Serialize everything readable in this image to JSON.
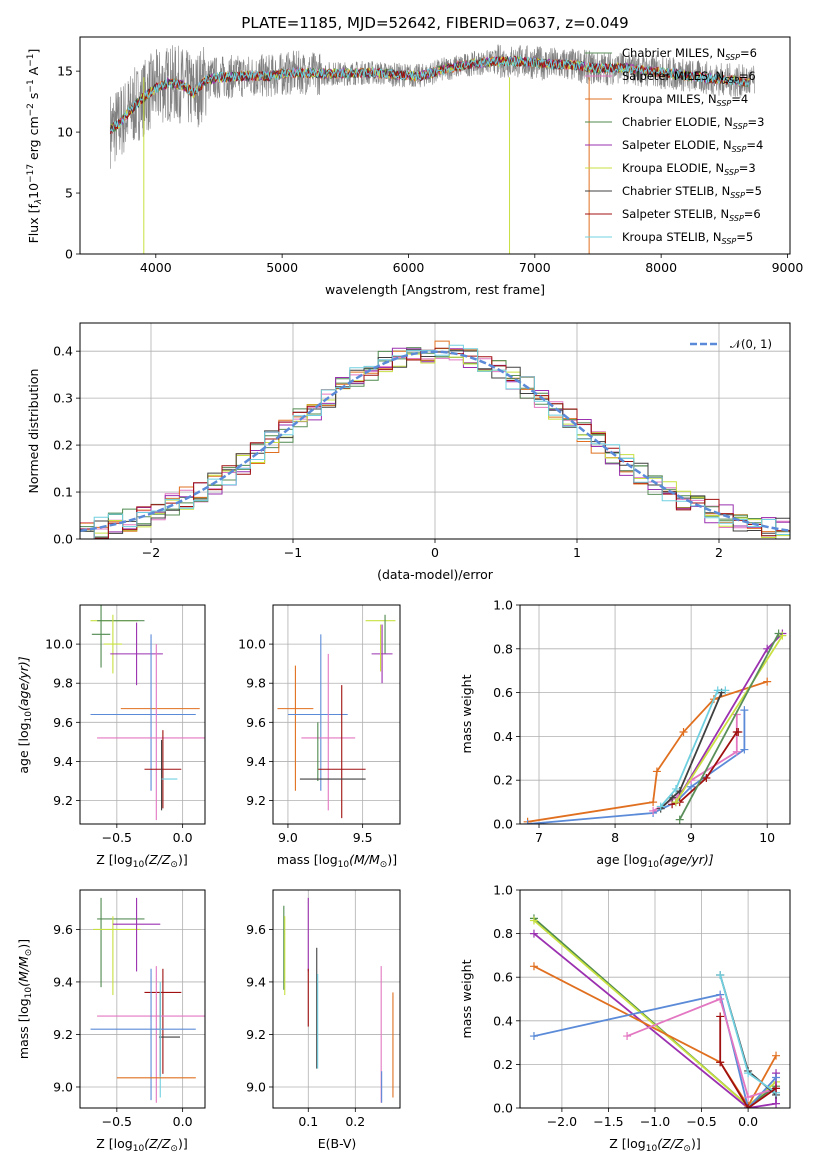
{
  "page_title": "PLATE=1185, MJD=52642, FIBERID=0637, z=0.049",
  "series_colors": [
    "#5a8f5a",
    "#e377c2",
    "#e07020",
    "#4f8a4f",
    "#9b30b0",
    "#c8e040",
    "#404040",
    "#a01010",
    "#70d0e0"
  ],
  "chart_data": [
    {
      "id": "spectrum",
      "type": "line",
      "title": "PLATE=1185, MJD=52642, FIBERID=0637, z=0.049",
      "xlabel": "wavelength [Angstrom, rest frame]",
      "ylabel_main": "Flux [f",
      "ylabel_sub": "λ",
      "ylabel_rest": "10",
      "ylabel_exp": "−17",
      "ylabel_units": " erg cm",
      "ylabel_units_exp": "−2",
      "ylabel_units2": " s",
      "ylabel_units2_exp": "−1",
      "ylabel_units3": " A",
      "ylabel_units3_exp": "−1",
      "ylabel_end": "]",
      "xlim": [
        3400,
        9020
      ],
      "ylim": [
        0,
        17.8
      ],
      "xticks": [
        4000,
        5000,
        6000,
        7000,
        8000,
        9000
      ],
      "yticks": [
        0,
        5,
        10,
        15
      ],
      "data_color": "#808080",
      "model_color": "#70d8e0",
      "legend_position": "right",
      "legend": [
        {
          "name": "Chabrier MILES, N",
          "sub": "SSP",
          "val": "=6",
          "color": "#5a8f5a"
        },
        {
          "name": "Salpeter MILES, N",
          "sub": "SSP",
          "val": "=6",
          "color": "#e377c2"
        },
        {
          "name": "Kroupa MILES, N",
          "sub": "SSP",
          "val": "=4",
          "color": "#e07020"
        },
        {
          "name": "Chabrier ELODIE, N",
          "sub": "SSP",
          "val": "=3",
          "color": "#4f8a4f"
        },
        {
          "name": "Salpeter ELODIE, N",
          "sub": "SSP",
          "val": "=4",
          "color": "#9b30b0"
        },
        {
          "name": "Kroupa ELODIE, N",
          "sub": "SSP",
          "val": "=3",
          "color": "#c8e040"
        },
        {
          "name": "Chabrier STELIB, N",
          "sub": "SSP",
          "val": "=5",
          "color": "#404040"
        },
        {
          "name": "Salpeter STELIB, N",
          "sub": "SSP",
          "val": "=6",
          "color": "#a01010"
        },
        {
          "name": "Kroupa STELIB, N",
          "sub": "SSP",
          "val": "=5",
          "color": "#70d0e0"
        }
      ],
      "continuum": [
        [
          3640,
          10.2
        ],
        [
          3700,
          10.6
        ],
        [
          3800,
          11.8
        ],
        [
          3900,
          12.8
        ],
        [
          4000,
          13.6
        ],
        [
          4100,
          14.0
        ],
        [
          4200,
          13.9
        ],
        [
          4300,
          13.2
        ],
        [
          4400,
          14.3
        ],
        [
          4500,
          14.5
        ],
        [
          4700,
          14.6
        ],
        [
          4900,
          14.6
        ],
        [
          5100,
          14.9
        ],
        [
          5300,
          14.8
        ],
        [
          5500,
          14.8
        ],
        [
          5700,
          14.9
        ],
        [
          5900,
          14.7
        ],
        [
          6100,
          14.6
        ],
        [
          6300,
          15.2
        ],
        [
          6500,
          15.6
        ],
        [
          6700,
          15.8
        ],
        [
          6900,
          15.8
        ],
        [
          7100,
          15.6
        ],
        [
          7300,
          15.5
        ],
        [
          7500,
          15.2
        ],
        [
          7700,
          15.3
        ],
        [
          7900,
          15.0
        ],
        [
          8100,
          14.8
        ],
        [
          8300,
          14.5
        ],
        [
          8500,
          14.3
        ],
        [
          8700,
          14.1
        ]
      ]
    },
    {
      "id": "residuals",
      "type": "bar",
      "xlabel": "(data-model)/error",
      "ylabel": "Normed distribution",
      "xlim": [
        -2.5,
        2.5
      ],
      "ylim": [
        0,
        0.46
      ],
      "xticks": [
        -2,
        -1,
        0,
        1,
        2
      ],
      "yticks": [
        0.0,
        0.1,
        0.2,
        0.3,
        0.4
      ],
      "legend_label": "𝒩(0, 1)",
      "legend_position": "top-right",
      "gauss_color": "#5b8bd8"
    },
    {
      "id": "age-vs-Z",
      "type": "scatter",
      "xlabel_main": "Z [log",
      "xlabel_sub": "10",
      "xlabel_rest": "(Z/Z",
      "xlabel_sub2": "⊙",
      "xlabel_end": ")]",
      "ylabel_main": "age  [log",
      "ylabel_sub": "10",
      "ylabel_rest": "(age/yr)]",
      "xlim": [
        -0.78,
        0.17
      ],
      "ylim": [
        9.08,
        10.2
      ],
      "xticks": [
        -0.5,
        0.0
      ],
      "xticklabels": [
        "−0.5",
        "0.0"
      ],
      "yticks": [
        9.2,
        9.4,
        9.6,
        9.8,
        10.0
      ],
      "points": [
        {
          "x": -0.52,
          "xerr": 0.18,
          "y": 10.12,
          "yerr": 0.0,
          "color": "#c8e040"
        },
        {
          "x": -0.47,
          "xerr": 0.18,
          "y": 10.12,
          "yerr": 0.0,
          "color": "#5a8f5a"
        },
        {
          "x": -0.62,
          "xerr": 0.07,
          "y": 10.05,
          "yerr": 0.17,
          "color": "#4f8a4f"
        },
        {
          "x": -0.53,
          "xerr": 0.07,
          "y": 10.0,
          "yerr": 0.15,
          "color": "#c8e040"
        },
        {
          "x": -0.35,
          "xerr": 0.2,
          "y": 9.95,
          "yerr": 0.16,
          "color": "#9b30b0"
        },
        {
          "x": -0.3,
          "xerr": 0.4,
          "y": 9.64,
          "yerr": 0.0,
          "color": "#5b8bd8"
        },
        {
          "x": -0.17,
          "xerr": 0.3,
          "y": 9.67,
          "yerr": 0.0,
          "color": "#e07020"
        },
        {
          "x": -0.24,
          "xerr": 0.0,
          "y": 9.65,
          "yerr": 0.4,
          "color": "#5b8bd8"
        },
        {
          "x": -0.2,
          "xerr": 0.0,
          "y": 9.55,
          "yerr": 0.45,
          "color": "#e377c2"
        },
        {
          "x": -0.2,
          "xerr": 0.45,
          "y": 9.52,
          "yerr": 0.0,
          "color": "#e377c2"
        },
        {
          "x": -0.15,
          "xerr": 0.14,
          "y": 9.36,
          "yerr": 0.2,
          "color": "#a01010"
        },
        {
          "x": -0.16,
          "xerr": 0.0,
          "y": 9.33,
          "yerr": 0.18,
          "color": "#404040"
        },
        {
          "x": -0.1,
          "xerr": 0.06,
          "y": 9.31,
          "yerr": 0.0,
          "color": "#70d0e0"
        }
      ]
    },
    {
      "id": "age-vs-mass",
      "type": "scatter",
      "xlabel_main": "mass [log",
      "xlabel_sub": "10",
      "xlabel_rest": "(M/M",
      "xlabel_sub2": "⊙",
      "xlabel_end": ")]",
      "xlim": [
        8.9,
        9.75
      ],
      "ylim": [
        9.08,
        10.2
      ],
      "xticks": [
        9.0,
        9.5
      ],
      "xticklabels": [
        "9.0",
        "9.5"
      ],
      "yticks": [
        9.2,
        9.4,
        9.6,
        9.8,
        10.0
      ],
      "points": [
        {
          "x": 9.62,
          "xerr": 0.1,
          "y": 10.12,
          "yerr": 0.0,
          "color": "#c8e040"
        },
        {
          "x": 9.65,
          "xerr": 0.0,
          "y": 10.05,
          "yerr": 0.1,
          "color": "#4f8a4f"
        },
        {
          "x": 9.63,
          "xerr": 0.07,
          "y": 9.95,
          "yerr": 0.15,
          "color": "#9b30b0"
        },
        {
          "x": 9.62,
          "xerr": 0.0,
          "y": 9.98,
          "yerr": 0.12,
          "color": "#c8e040"
        },
        {
          "x": 9.05,
          "xerr": 0.0,
          "y": 9.57,
          "yerr": 0.32,
          "color": "#e07020"
        },
        {
          "x": 9.05,
          "xerr": 0.12,
          "y": 9.67,
          "yerr": 0.0,
          "color": "#e07020"
        },
        {
          "x": 9.22,
          "xerr": 0.0,
          "y": 9.65,
          "yerr": 0.4,
          "color": "#5b8bd8"
        },
        {
          "x": 9.2,
          "xerr": 0.2,
          "y": 9.64,
          "yerr": 0.0,
          "color": "#5b8bd8"
        },
        {
          "x": 9.27,
          "xerr": 0.0,
          "y": 9.55,
          "yerr": 0.4,
          "color": "#e377c2"
        },
        {
          "x": 9.27,
          "xerr": 0.18,
          "y": 9.52,
          "yerr": 0.0,
          "color": "#e377c2"
        },
        {
          "x": 9.36,
          "xerr": 0.0,
          "y": 9.45,
          "yerr": 0.34,
          "color": "#a01010"
        },
        {
          "x": 9.36,
          "xerr": 0.16,
          "y": 9.36,
          "yerr": 0.0,
          "color": "#a01010"
        },
        {
          "x": 9.2,
          "xerr": 0.0,
          "y": 9.45,
          "yerr": 0.15,
          "color": "#4f8a4f"
        },
        {
          "x": 9.3,
          "xerr": 0.22,
          "y": 9.31,
          "yerr": 0.0,
          "color": "#404040"
        }
      ]
    },
    {
      "id": "massweight-vs-age",
      "type": "line",
      "xlabel_main": "age  [log",
      "xlabel_sub": "10",
      "xlabel_rest": "(age/yr)]",
      "ylabel": "mass weight",
      "xlim": [
        6.75,
        10.3
      ],
      "ylim": [
        0,
        1.0
      ],
      "xticks": [
        7,
        8,
        9,
        10
      ],
      "xticklabels": [
        "7",
        "8",
        "9",
        "10"
      ],
      "yticks": [
        0.0,
        0.2,
        0.4,
        0.6,
        0.8,
        1.0
      ],
      "series": [
        {
          "color": "#e07020",
          "x": [
            6.85,
            8.5,
            8.55,
            8.9,
            9.3,
            10.0
          ],
          "y": [
            0.01,
            0.1,
            0.24,
            0.42,
            0.57,
            0.65
          ]
        },
        {
          "color": "#5b8bd8",
          "x": [
            6.85,
            8.5,
            8.8,
            9.0,
            9.7,
            9.7
          ],
          "y": [
            0.0,
            0.05,
            0.1,
            0.17,
            0.34,
            0.52
          ]
        },
        {
          "color": "#e377c2",
          "x": [
            8.5,
            8.8,
            9.0,
            9.6,
            9.6
          ],
          "y": [
            0.06,
            0.12,
            0.2,
            0.33,
            0.5
          ]
        },
        {
          "color": "#a01010",
          "x": [
            8.75,
            8.85,
            9.2,
            9.6,
            9.62
          ],
          "y": [
            0.09,
            0.1,
            0.21,
            0.42,
            0.42
          ]
        },
        {
          "color": "#404040",
          "x": [
            8.6,
            8.75,
            8.85,
            9.4
          ],
          "y": [
            0.07,
            0.12,
            0.15,
            0.6
          ]
        },
        {
          "color": "#70d0e0",
          "x": [
            8.6,
            8.8,
            9.35,
            9.45
          ],
          "y": [
            0.08,
            0.16,
            0.61,
            0.61
          ]
        },
        {
          "color": "#9b30b0",
          "x": [
            8.8,
            10.0,
            10.2
          ],
          "y": [
            0.1,
            0.8,
            0.87
          ]
        },
        {
          "color": "#c8e040",
          "x": [
            8.8,
            10.2
          ],
          "y": [
            0.1,
            0.86
          ]
        },
        {
          "color": "#5a8f5a",
          "x": [
            8.85,
            10.15
          ],
          "y": [
            0.02,
            0.87
          ]
        }
      ]
    },
    {
      "id": "mass-vs-Z",
      "type": "scatter",
      "xlabel_main": "Z [log",
      "xlabel_sub": "10",
      "xlabel_rest": "(Z/Z",
      "xlabel_sub2": "⊙",
      "xlabel_end": ")]",
      "ylabel_main": "mass [log",
      "ylabel_sub": "10",
      "ylabel_rest": "(M/M",
      "ylabel_sub2": "⊙",
      "ylabel_end": ")]",
      "xlim": [
        -0.78,
        0.17
      ],
      "ylim": [
        8.92,
        9.75
      ],
      "xticks": [
        -0.5,
        0.0
      ],
      "xticklabels": [
        "−0.5",
        "0.0"
      ],
      "yticks": [
        9.0,
        9.2,
        9.4,
        9.6
      ],
      "points": [
        {
          "x": -0.47,
          "xerr": 0.18,
          "y": 9.64,
          "yerr": 0.0,
          "color": "#5a8f5a"
        },
        {
          "x": -0.62,
          "xerr": 0.0,
          "y": 9.55,
          "yerr": 0.17,
          "color": "#4f8a4f"
        },
        {
          "x": -0.53,
          "xerr": 0.0,
          "y": 9.5,
          "yerr": 0.15,
          "color": "#c8e040"
        },
        {
          "x": -0.5,
          "xerr": 0.18,
          "y": 9.6,
          "yerr": 0.0,
          "color": "#c8e040"
        },
        {
          "x": -0.35,
          "xerr": 0.18,
          "y": 9.62,
          "yerr": 0.0,
          "color": "#9b30b0"
        },
        {
          "x": -0.35,
          "xerr": 0.0,
          "y": 9.58,
          "yerr": 0.14,
          "color": "#9b30b0"
        },
        {
          "x": -0.15,
          "xerr": 0.14,
          "y": 9.36,
          "yerr": 0.0,
          "color": "#a01010"
        },
        {
          "x": -0.15,
          "xerr": 0.0,
          "y": 9.25,
          "yerr": 0.2,
          "color": "#a01010"
        },
        {
          "x": -0.2,
          "xerr": 0.45,
          "y": 9.27,
          "yerr": 0.0,
          "color": "#e377c2"
        },
        {
          "x": -0.2,
          "xerr": 0.0,
          "y": 9.2,
          "yerr": 0.26,
          "color": "#e377c2"
        },
        {
          "x": -0.24,
          "xerr": 0.0,
          "y": 9.2,
          "yerr": 0.25,
          "color": "#5b8bd8"
        },
        {
          "x": -0.3,
          "xerr": 0.4,
          "y": 9.22,
          "yerr": 0.0,
          "color": "#5b8bd8"
        },
        {
          "x": -0.17,
          "xerr": 0.0,
          "y": 9.2,
          "yerr": 0.16,
          "color": "#404040"
        },
        {
          "x": -0.1,
          "xerr": 0.08,
          "y": 9.19,
          "yerr": 0.0,
          "color": "#404040"
        },
        {
          "x": -0.17,
          "xerr": 0.0,
          "y": 9.18,
          "yerr": 0.22,
          "color": "#70d0e0"
        },
        {
          "x": -0.2,
          "xerr": 0.3,
          "y": 9.035,
          "yerr": 0.0,
          "color": "#e07020"
        }
      ]
    },
    {
      "id": "mass-vs-EBV",
      "type": "scatter",
      "xlabel": "E(B-V)",
      "xlim": [
        0.025,
        0.295
      ],
      "ylim": [
        8.92,
        9.75
      ],
      "xticks": [
        0.1,
        0.2
      ],
      "xticklabels": [
        "0.1",
        "0.2"
      ],
      "yticks": [
        9.0,
        9.2,
        9.4,
        9.6
      ],
      "points": [
        {
          "x": 0.048,
          "xerr": 0.0,
          "y": 9.53,
          "yerr": 0.16,
          "color": "#4f8a4f"
        },
        {
          "x": 0.05,
          "xerr": 0.0,
          "y": 9.5,
          "yerr": 0.15,
          "color": "#c8e040"
        },
        {
          "x": 0.1,
          "xerr": 0.0,
          "y": 9.58,
          "yerr": 0.14,
          "color": "#9b30b0"
        },
        {
          "x": 0.1,
          "xerr": 0.0,
          "y": 9.34,
          "yerr": 0.11,
          "color": "#a01010"
        },
        {
          "x": 0.118,
          "xerr": 0.0,
          "y": 9.3,
          "yerr": 0.23,
          "color": "#404040"
        },
        {
          "x": 0.12,
          "xerr": 0.0,
          "y": 9.25,
          "yerr": 0.18,
          "color": "#70d0e0"
        },
        {
          "x": 0.255,
          "xerr": 0.0,
          "y": 9.2,
          "yerr": 0.26,
          "color": "#e377c2"
        },
        {
          "x": 0.256,
          "xerr": 0.0,
          "y": 9.0,
          "yerr": 0.06,
          "color": "#5b8bd8"
        },
        {
          "x": 0.28,
          "xerr": 0.0,
          "y": 9.16,
          "yerr": 0.2,
          "color": "#e07020"
        }
      ]
    },
    {
      "id": "massweight-vs-Z",
      "type": "line",
      "xlabel_main": "Z [log",
      "xlabel_sub": "10",
      "xlabel_rest": "(Z/Z",
      "xlabel_sub2": "⊙",
      "xlabel_end": ")]",
      "ylabel": "mass weight",
      "xlim": [
        -2.45,
        0.45
      ],
      "ylim": [
        0,
        1.0
      ],
      "xticks": [
        -2.0,
        -1.5,
        -1.0,
        -0.5,
        0.0
      ],
      "xticklabels": [
        "−2.0",
        "−1.5",
        "−1.0",
        "−0.5",
        "0.0"
      ],
      "yticks": [
        0.0,
        0.2,
        0.4,
        0.6,
        0.8,
        1.0
      ],
      "series": [
        {
          "color": "#4f8a4f",
          "x": [
            -2.3,
            0.0,
            0.3
          ],
          "y": [
            0.87,
            0.01,
            0.1
          ]
        },
        {
          "color": "#c8e040",
          "x": [
            -2.3,
            0.0,
            0.3
          ],
          "y": [
            0.86,
            0.01,
            0.12
          ]
        },
        {
          "color": "#9b30b0",
          "x": [
            -2.3,
            0.0,
            0.3,
            0.3
          ],
          "y": [
            0.8,
            0.0,
            0.02,
            0.16
          ]
        },
        {
          "color": "#e07020",
          "x": [
            -2.3,
            -0.3,
            0.0,
            0.3
          ],
          "y": [
            0.65,
            0.21,
            0.01,
            0.24
          ]
        },
        {
          "color": "#5b8bd8",
          "x": [
            -2.3,
            -0.3,
            0.0,
            0.3
          ],
          "y": [
            0.33,
            0.52,
            0.0,
            0.14
          ]
        },
        {
          "color": "#e377c2",
          "x": [
            -1.3,
            -0.3,
            0.0,
            0.3
          ],
          "y": [
            0.33,
            0.5,
            0.05,
            0.09
          ]
        },
        {
          "color": "#404040",
          "x": [
            -0.3,
            0.0,
            0.3
          ],
          "y": [
            0.61,
            0.17,
            0.06
          ]
        },
        {
          "color": "#70d0e0",
          "x": [
            -0.3,
            0.0,
            0.3
          ],
          "y": [
            0.61,
            0.16,
            0.07
          ]
        },
        {
          "color": "#a01010",
          "x": [
            -0.3,
            -0.3,
            0.0,
            0.3
          ],
          "y": [
            0.42,
            0.21,
            0.0,
            0.09
          ]
        }
      ]
    }
  ]
}
